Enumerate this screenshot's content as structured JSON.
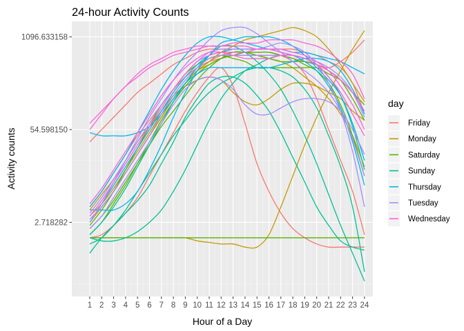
{
  "chart_data": {
    "type": "line",
    "title": "24-hour Activity Counts",
    "xlabel": "Hour of a Day",
    "ylabel": "Activity counts",
    "x": [
      1,
      2,
      3,
      4,
      5,
      6,
      7,
      8,
      9,
      10,
      11,
      12,
      13,
      14,
      15,
      16,
      17,
      18,
      19,
      20,
      21,
      22,
      23,
      24
    ],
    "x_tick_labels": [
      "1",
      "2",
      "3",
      "4",
      "5",
      "6",
      "7",
      "8",
      "9",
      "10",
      "11",
      "12",
      "13",
      "14",
      "15",
      "16",
      "17",
      "18",
      "19",
      "20",
      "21",
      "22",
      "23",
      "24"
    ],
    "xlim": [
      -0.5,
      24.7
    ],
    "y_scale": "log",
    "y_tick_labels": [
      "2.718282",
      "54.598150",
      "1096.633158"
    ],
    "y_tick_values": [
      2.718282,
      54.59815,
      1096.633158
    ],
    "ylim_ln": [
      -1.4,
      7.5
    ],
    "grid": true,
    "legend": {
      "title": "day",
      "position": "right",
      "entries": [
        {
          "label": "Friday",
          "color": "#F8766D"
        },
        {
          "label": "Monday",
          "color": "#C49A00"
        },
        {
          "label": "Saturday",
          "color": "#53B400"
        },
        {
          "label": "Sunday",
          "color": "#00C094"
        },
        {
          "label": "Thursday",
          "color": "#00B6EB"
        },
        {
          "label": "Tuesday",
          "color": "#A58AFF"
        },
        {
          "label": "Wednesday",
          "color": "#FB61D7"
        }
      ]
    },
    "series": [
      {
        "day": "Friday",
        "color": "#F8766D",
        "values": [
          0.5,
          0.6,
          0.9,
          1.3,
          1.8,
          2.5,
          3.2,
          3.9,
          4.6,
          5.2,
          5.7,
          6.0,
          5.4,
          4.2,
          2.9,
          2.0,
          1.3,
          0.8,
          0.5,
          0.3,
          0.2,
          0.2,
          0.2,
          0.2
        ]
      },
      {
        "day": "Friday",
        "color": "#F8766D",
        "values": [
          1.0,
          1.5,
          2.0,
          2.6,
          3.2,
          3.8,
          4.4,
          5.0,
          5.5,
          5.9,
          6.2,
          6.4,
          6.5,
          6.5,
          6.5,
          6.5,
          6.4,
          6.2,
          5.8,
          5.0,
          4.0,
          3.0,
          2.0,
          0.6
        ]
      },
      {
        "day": "Friday",
        "color": "#F8766D",
        "values": [
          3.6,
          4.0,
          4.4,
          4.8,
          5.2,
          5.5,
          5.8,
          6.1,
          6.3,
          6.5,
          6.6,
          6.6,
          6.6,
          6.6,
          6.6,
          6.6,
          6.6,
          6.6,
          6.5,
          6.4,
          6.2,
          6.0,
          5.5,
          4.5
        ]
      },
      {
        "day": "Friday",
        "color": "#F8766D",
        "values": [
          1.5,
          2.0,
          2.6,
          3.2,
          3.8,
          4.3,
          4.8,
          5.3,
          5.7,
          6.0,
          6.2,
          6.3,
          6.4,
          6.4,
          6.4,
          6.4,
          6.4,
          6.3,
          6.2,
          6.1,
          6.0,
          6.2,
          6.5,
          6.9
        ]
      },
      {
        "day": "Monday",
        "color": "#C49A00",
        "values": [
          1.0,
          1.5,
          2.0,
          2.6,
          3.2,
          3.8,
          4.4,
          5.0,
          5.5,
          5.9,
          6.2,
          6.5,
          6.7,
          6.9,
          7.0,
          7.1,
          7.2,
          7.3,
          7.2,
          7.0,
          6.6,
          6.1,
          5.5,
          4.9
        ]
      },
      {
        "day": "Monday",
        "color": "#C49A00",
        "values": [
          0.5,
          0.5,
          0.5,
          0.5,
          0.5,
          0.5,
          0.5,
          0.5,
          0.5,
          0.4,
          0.35,
          0.3,
          0.3,
          0.2,
          0.2,
          0.6,
          1.5,
          2.5,
          3.5,
          4.4,
          5.2,
          5.9,
          6.6,
          7.2
        ]
      },
      {
        "day": "Monday",
        "color": "#C49A00",
        "values": [
          1.4,
          1.9,
          2.4,
          3.0,
          3.6,
          4.1,
          4.6,
          5.1,
          5.4,
          5.6,
          5.7,
          5.6,
          5.2,
          4.9,
          4.8,
          5.0,
          5.3,
          5.5,
          5.5,
          5.4,
          5.2,
          5.0,
          4.6,
          4.3
        ]
      },
      {
        "day": "Monday",
        "color": "#C49A00",
        "values": [
          1.2,
          1.6,
          2.1,
          2.7,
          3.3,
          3.9,
          4.5,
          5.0,
          5.5,
          5.9,
          6.1,
          6.3,
          6.4,
          6.4,
          6.4,
          6.3,
          6.2,
          6.0,
          5.7,
          5.4,
          5.0,
          4.5,
          3.8,
          2.8
        ]
      },
      {
        "day": "Saturday",
        "color": "#53B400",
        "values": [
          0.5,
          0.5,
          0.5,
          0.5,
          0.5,
          0.5,
          0.5,
          0.5,
          0.5,
          0.5,
          0.5,
          0.5,
          0.5,
          0.5,
          0.5,
          0.5,
          0.5,
          0.5,
          0.5,
          0.5,
          0.5,
          0.5,
          0.5,
          0.5
        ]
      },
      {
        "day": "Saturday",
        "color": "#53B400",
        "values": [
          0.9,
          1.4,
          2.0,
          2.7,
          3.4,
          4.1,
          4.8,
          5.3,
          5.8,
          6.1,
          6.3,
          6.4,
          6.3,
          6.2,
          6.0,
          6.0,
          6.0,
          6.0,
          6.0,
          6.0,
          5.8,
          5.6,
          5.2,
          4.8
        ]
      },
      {
        "day": "Saturday",
        "color": "#53B400",
        "values": [
          0.6,
          1.0,
          1.6,
          2.2,
          2.9,
          3.6,
          4.3,
          4.9,
          5.4,
          5.8,
          6.1,
          6.3,
          6.4,
          6.5,
          6.5,
          6.5,
          6.4,
          6.3,
          6.1,
          5.9,
          5.5,
          4.8,
          3.8,
          2.5
        ]
      },
      {
        "day": "Saturday",
        "color": "#53B400",
        "values": [
          0.8,
          1.2,
          1.7,
          2.3,
          2.9,
          3.5,
          4.1,
          4.6,
          5.1,
          5.6,
          6.0,
          6.3,
          6.5,
          6.5,
          6.4,
          6.3,
          6.2,
          6.2,
          6.2,
          6.1,
          5.9,
          5.6,
          5.0,
          4.3
        ]
      },
      {
        "day": "Sunday",
        "color": "#00C094",
        "values": [
          0.3,
          0.5,
          0.9,
          1.4,
          2.0,
          2.6,
          3.2,
          3.8,
          4.3,
          4.8,
          5.2,
          5.5,
          5.7,
          5.9,
          6.0,
          6.0,
          5.9,
          5.7,
          5.3,
          4.7,
          3.8,
          2.8,
          1.5,
          -0.6
        ]
      },
      {
        "day": "Sunday",
        "color": "#00C094",
        "values": [
          0.5,
          0.4,
          0.4,
          0.5,
          0.7,
          1.0,
          1.4,
          2.0,
          2.7,
          3.5,
          4.3,
          5.0,
          5.5,
          5.9,
          6.1,
          6.3,
          6.4,
          6.4,
          6.3,
          6.1,
          5.7,
          5.1,
          4.1,
          2.7
        ]
      },
      {
        "day": "Sunday",
        "color": "#00C094",
        "values": [
          0.6,
          1.0,
          1.5,
          2.1,
          2.8,
          3.5,
          4.2,
          4.9,
          5.5,
          6.0,
          6.4,
          6.7,
          6.7,
          6.5,
          6.2,
          5.8,
          5.3,
          4.6,
          3.8,
          2.9,
          1.9,
          0.9,
          0.0,
          -0.9
        ]
      },
      {
        "day": "Sunday",
        "color": "#00C094",
        "values": [
          0.0,
          0.5,
          0.9,
          1.3,
          1.7,
          2.2,
          2.9,
          3.6,
          4.4,
          5.0,
          5.5,
          5.7,
          5.7,
          5.5,
          5.1,
          4.6,
          3.9,
          3.1,
          2.3,
          1.5,
          0.9,
          0.4,
          0.2,
          0.1
        ]
      },
      {
        "day": "Thursday",
        "color": "#00B6EB",
        "values": [
          1.4,
          1.4,
          1.4,
          1.6,
          2.0,
          2.7,
          3.5,
          4.4,
          5.2,
          5.9,
          6.4,
          6.8,
          6.9,
          7.0,
          7.0,
          7.0,
          6.9,
          6.7,
          6.4,
          6.0,
          5.6,
          5.1,
          4.2,
          3.0
        ]
      },
      {
        "day": "Thursday",
        "color": "#00B6EB",
        "values": [
          3.9,
          3.8,
          3.8,
          3.8,
          3.9,
          4.1,
          4.5,
          5.0,
          5.5,
          5.8,
          6.0,
          6.0,
          6.0,
          6.0,
          6.0,
          6.0,
          6.1,
          6.2,
          6.3,
          6.3,
          6.2,
          5.9,
          5.3,
          4.5
        ]
      },
      {
        "day": "Thursday",
        "color": "#00B6EB",
        "values": [
          1.5,
          2.0,
          2.6,
          3.2,
          3.9,
          4.6,
          5.3,
          5.9,
          6.4,
          6.8,
          7.0,
          7.0,
          6.9,
          6.8,
          6.7,
          6.6,
          6.6,
          6.5,
          6.5,
          6.4,
          6.3,
          6.2,
          6.0,
          5.8
        ]
      },
      {
        "day": "Thursday",
        "color": "#00B6EB",
        "values": [
          1.0,
          1.6,
          2.2,
          2.8,
          3.4,
          4.0,
          4.6,
          5.2,
          5.7,
          6.1,
          6.4,
          6.5,
          6.6,
          6.6,
          6.6,
          6.6,
          6.5,
          6.4,
          6.2,
          5.9,
          5.4,
          4.7,
          3.6,
          2.2
        ]
      },
      {
        "day": "Tuesday",
        "color": "#A58AFF",
        "values": [
          1.0,
          1.6,
          2.3,
          3.0,
          3.7,
          4.4,
          5.0,
          5.6,
          6.1,
          6.5,
          6.9,
          7.2,
          7.3,
          7.3,
          7.1,
          6.8,
          6.5,
          6.2,
          5.9,
          5.6,
          5.2,
          4.6,
          3.7,
          2.5
        ]
      },
      {
        "day": "Tuesday",
        "color": "#A58AFF",
        "values": [
          0.8,
          1.2,
          1.8,
          2.4,
          3.0,
          3.6,
          4.2,
          4.8,
          5.3,
          5.6,
          5.7,
          5.6,
          5.3,
          4.8,
          4.5,
          4.5,
          4.7,
          4.9,
          5.0,
          5.0,
          4.9,
          4.6,
          4.0,
          3.2
        ]
      },
      {
        "day": "Tuesday",
        "color": "#A58AFF",
        "values": [
          1.3,
          1.8,
          2.4,
          3.0,
          3.6,
          4.2,
          4.8,
          5.3,
          5.8,
          6.2,
          6.5,
          6.6,
          6.6,
          6.6,
          6.6,
          6.7,
          6.8,
          6.7,
          6.5,
          6.1,
          5.5,
          4.6,
          3.3,
          1.5
        ]
      },
      {
        "day": "Tuesday",
        "color": "#A58AFF",
        "values": [
          1.1,
          1.5,
          2.0,
          2.6,
          3.2,
          3.8,
          4.5,
          5.1,
          5.6,
          6.0,
          6.3,
          6.4,
          6.4,
          6.4,
          6.4,
          6.4,
          6.4,
          6.4,
          6.3,
          6.2,
          6.0,
          5.7,
          5.2,
          4.4
        ]
      },
      {
        "day": "Wednesday",
        "color": "#FB61D7",
        "values": [
          4.0,
          4.5,
          5.0,
          5.4,
          5.8,
          6.1,
          6.3,
          6.5,
          6.6,
          6.7,
          6.7,
          6.7,
          6.8,
          6.8,
          6.8,
          6.9,
          6.9,
          6.9,
          6.8,
          6.7,
          6.5,
          6.2,
          5.8,
          5.0
        ]
      },
      {
        "day": "Wednesday",
        "color": "#FB61D7",
        "values": [
          4.2,
          4.6,
          5.0,
          5.4,
          5.7,
          6.0,
          6.2,
          6.4,
          6.5,
          6.6,
          6.7,
          6.7,
          6.7,
          6.7,
          6.6,
          6.6,
          6.5,
          6.4,
          6.3,
          6.1,
          5.9,
          5.6,
          5.2,
          4.6
        ]
      },
      {
        "day": "Wednesday",
        "color": "#FB61D7",
        "values": [
          1.6,
          2.1,
          2.7,
          3.3,
          3.9,
          4.5,
          5.1,
          5.6,
          6.0,
          6.3,
          6.5,
          6.5,
          6.4,
          6.3,
          6.3,
          6.3,
          6.4,
          6.4,
          6.3,
          6.1,
          5.7,
          5.2,
          4.5,
          3.8
        ]
      },
      {
        "day": "Wednesday",
        "color": "#FB61D7",
        "values": [
          1.2,
          1.7,
          2.3,
          2.9,
          3.5,
          4.1,
          4.7,
          5.3,
          5.8,
          6.2,
          6.4,
          6.5,
          6.5,
          6.5,
          6.6,
          6.6,
          6.6,
          6.5,
          6.4,
          6.2,
          5.9,
          5.4,
          4.8,
          4.0
        ]
      }
    ]
  }
}
